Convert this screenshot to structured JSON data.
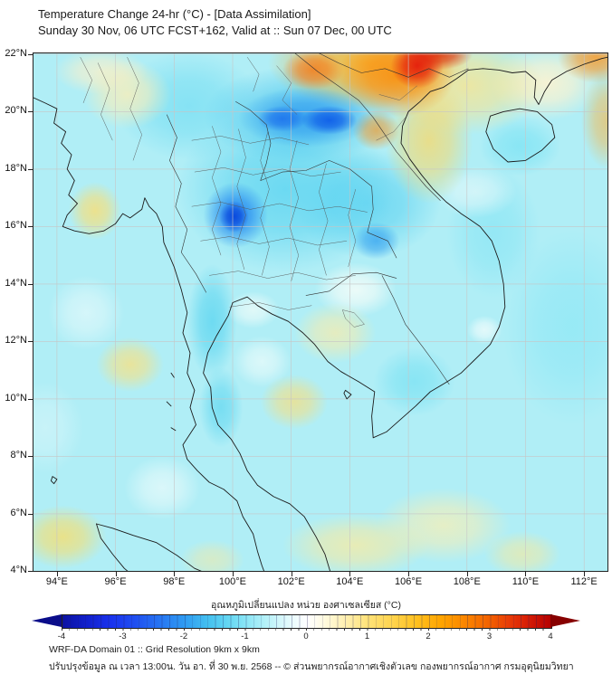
{
  "header": {
    "title": "Temperature Change 24-hr (°C) - [Data Assimilation]",
    "subtitle": "Sunday 30 Nov, 06 UTC FCST+162, Valid at :: Sun 07 Dec, 00 UTC"
  },
  "chart_data": {
    "type": "heatmap",
    "title": "Temperature Change 24-hr (°C) - [Data Assimilation]",
    "x_range_deg_east": [
      93.17,
      112.83
    ],
    "y_range_deg_north": [
      3.93,
      22.06
    ],
    "grid": true,
    "lon_ticks": [
      {
        "label": "94°E",
        "value": 94
      },
      {
        "label": "96°E",
        "value": 96
      },
      {
        "label": "98°E",
        "value": 98
      },
      {
        "label": "100°E",
        "value": 100
      },
      {
        "label": "102°E",
        "value": 102
      },
      {
        "label": "104°E",
        "value": 104
      },
      {
        "label": "106°E",
        "value": 106
      },
      {
        "label": "108°E",
        "value": 108
      },
      {
        "label": "110°E",
        "value": 110
      },
      {
        "label": "112°E",
        "value": 112
      }
    ],
    "lat_ticks": [
      {
        "label": "22°N",
        "value": 22
      },
      {
        "label": "20°N",
        "value": 20
      },
      {
        "label": "18°N",
        "value": 18
      },
      {
        "label": "16°N",
        "value": 16
      },
      {
        "label": "14°N",
        "value": 14
      },
      {
        "label": "12°N",
        "value": 12
      },
      {
        "label": "10°N",
        "value": 10
      },
      {
        "label": "8°N",
        "value": 8
      },
      {
        "label": "6°N",
        "value": 6
      },
      {
        "label": "4°N",
        "value": 4
      }
    ],
    "features": [
      {
        "name": "strong-cooling-core-north-thailand",
        "lon": 100.0,
        "lat": 16.4,
        "value_c": -3.5
      },
      {
        "name": "cooling-band-north-laos",
        "lon": 102.4,
        "lat": 19.7,
        "value_c": -3.0
      },
      {
        "name": "cooling-spot-south-laos",
        "lon": 104.9,
        "lat": 15.5,
        "value_c": -2.0
      },
      {
        "name": "general-cooling-region",
        "lon": 101.5,
        "lat": 14.0,
        "value_c": -1.0
      },
      {
        "name": "strong-warming-north-vietnam",
        "lon": 106.3,
        "lat": 21.6,
        "value_c": 3.8
      },
      {
        "name": "warming-top-right-corner",
        "lon": 112.4,
        "lat": 21.9,
        "value_c": 2.5
      },
      {
        "name": "mild-warming-myanmar-coast",
        "lon": 95.3,
        "lat": 16.5,
        "value_c": 0.8
      },
      {
        "name": "mild-warming-gulf",
        "lon": 102.1,
        "lat": 9.9,
        "value_c": 0.7
      },
      {
        "name": "mild-warming-south-band",
        "lon": 105.0,
        "lat": 5.2,
        "value_c": 0.5
      }
    ],
    "base_color": "#b0eef6",
    "field_blobs": [
      {
        "lon": 100.05,
        "lat": 16.35,
        "rx": 0.5,
        "ry": 0.55,
        "color": "#0846dc",
        "a": 0.95
      },
      {
        "lon": 100.1,
        "lat": 16.4,
        "rx": 1.1,
        "ry": 1.15,
        "color": "#1b7ef0",
        "a": 0.8
      },
      {
        "lon": 103.3,
        "lat": 19.7,
        "rx": 0.95,
        "ry": 0.5,
        "color": "#0c5ae8",
        "a": 0.9
      },
      {
        "lon": 101.7,
        "lat": 19.75,
        "rx": 0.85,
        "ry": 0.45,
        "color": "#1668ec",
        "a": 0.75
      },
      {
        "lon": 102.5,
        "lat": 19.8,
        "rx": 2.3,
        "ry": 1.05,
        "color": "#2b96f0",
        "a": 0.75
      },
      {
        "lon": 104.9,
        "lat": 15.5,
        "rx": 0.8,
        "ry": 0.65,
        "color": "#2f9df0",
        "a": 0.7
      },
      {
        "lon": 106.3,
        "lat": 21.6,
        "rx": 0.9,
        "ry": 0.8,
        "color": "#e41c0c",
        "a": 0.95
      },
      {
        "lon": 107.0,
        "lat": 22.0,
        "rx": 1.2,
        "ry": 0.55,
        "color": "#e03008",
        "a": 0.85
      },
      {
        "lon": 105.6,
        "lat": 21.25,
        "rx": 2.0,
        "ry": 1.45,
        "color": "#fb8c0a",
        "a": 0.85
      },
      {
        "lon": 102.75,
        "lat": 21.45,
        "rx": 1.05,
        "ry": 0.7,
        "color": "#f57818",
        "a": 0.8
      },
      {
        "lon": 104.9,
        "lat": 19.35,
        "rx": 0.8,
        "ry": 0.7,
        "color": "#f8941c",
        "a": 0.65
      },
      {
        "lon": 104.6,
        "lat": 21.7,
        "rx": 3.4,
        "ry": 1.6,
        "color": "#ffb01e",
        "a": 0.85
      },
      {
        "lon": 106.7,
        "lat": 19.0,
        "rx": 1.5,
        "ry": 2.2,
        "color": "#ffd75e",
        "a": 0.7
      },
      {
        "lon": 108.0,
        "lat": 20.9,
        "rx": 2.6,
        "ry": 1.7,
        "color": "#ffe488",
        "a": 0.75
      },
      {
        "lon": 112.4,
        "lat": 21.9,
        "rx": 1.3,
        "ry": 0.9,
        "color": "#fa9a2a",
        "a": 0.85
      },
      {
        "lon": 112.8,
        "lat": 19.7,
        "rx": 0.9,
        "ry": 1.7,
        "color": "#fbb23e",
        "a": 0.6
      },
      {
        "lon": 110.7,
        "lat": 21.0,
        "rx": 1.9,
        "ry": 1.3,
        "color": "#fdf3d0",
        "a": 0.9
      },
      {
        "lon": 95.3,
        "lat": 16.55,
        "rx": 0.9,
        "ry": 1.0,
        "color": "#f2e083",
        "a": 0.9
      },
      {
        "lon": 96.4,
        "lat": 20.6,
        "rx": 1.5,
        "ry": 1.2,
        "color": "#f6eebc",
        "a": 0.85
      },
      {
        "lon": 95.5,
        "lat": 21.4,
        "rx": 1.6,
        "ry": 0.8,
        "color": "#f7f0cc",
        "a": 0.8
      },
      {
        "lon": 96.5,
        "lat": 11.2,
        "rx": 1.15,
        "ry": 0.95,
        "color": "#f2e28c",
        "a": 0.85
      },
      {
        "lon": 94.2,
        "lat": 5.2,
        "rx": 1.5,
        "ry": 1.1,
        "color": "#efe07e",
        "a": 0.9
      },
      {
        "lon": 102.1,
        "lat": 9.9,
        "rx": 1.15,
        "ry": 0.95,
        "color": "#f1e08a",
        "a": 0.8
      },
      {
        "lon": 103.5,
        "lat": 12.3,
        "rx": 1.4,
        "ry": 1.05,
        "color": "#f6ecae",
        "a": 0.75
      },
      {
        "lon": 104.2,
        "lat": 4.9,
        "rx": 2.5,
        "ry": 1.1,
        "color": "#f5eba6",
        "a": 0.8
      },
      {
        "lon": 107.2,
        "lat": 5.6,
        "rx": 2.3,
        "ry": 1.3,
        "color": "#f7efb6",
        "a": 0.75
      },
      {
        "lon": 109.9,
        "lat": 4.6,
        "rx": 1.3,
        "ry": 0.8,
        "color": "#f4e9a0",
        "a": 0.65
      },
      {
        "lon": 99.3,
        "lat": 4.4,
        "rx": 1.1,
        "ry": 0.7,
        "color": "#f4e9a4",
        "a": 0.55
      },
      {
        "lon": 104.2,
        "lat": 13.8,
        "rx": 1.4,
        "ry": 0.95,
        "color": "#f2fcf8",
        "a": 0.9
      },
      {
        "lon": 100.7,
        "lat": 13.1,
        "rx": 0.9,
        "ry": 0.65,
        "color": "#ecfbf9",
        "a": 0.8
      },
      {
        "lon": 101.0,
        "lat": 11.3,
        "rx": 1.0,
        "ry": 0.9,
        "color": "#eefcfb",
        "a": 0.7
      },
      {
        "lon": 95.0,
        "lat": 13.0,
        "rx": 1.3,
        "ry": 1.3,
        "color": "#e4f9fb",
        "a": 0.7
      },
      {
        "lon": 97.6,
        "lat": 6.9,
        "rx": 1.3,
        "ry": 1.1,
        "color": "#ecfbfb",
        "a": 0.7
      },
      {
        "lon": 93.6,
        "lat": 9.0,
        "rx": 1.3,
        "ry": 1.6,
        "color": "#d8f6fa",
        "a": 0.6
      },
      {
        "lon": 108.6,
        "lat": 12.4,
        "rx": 0.6,
        "ry": 0.5,
        "color": "#effcfc",
        "a": 0.8
      },
      {
        "lon": 108.3,
        "lat": 17.2,
        "rx": 1.4,
        "ry": 0.9,
        "color": "#f0fbfb",
        "a": 0.6
      },
      {
        "lon": 102.3,
        "lat": 19.9,
        "rx": 3.3,
        "ry": 1.7,
        "color": "#47c4ee",
        "a": 0.7
      },
      {
        "lon": 101.8,
        "lat": 17.3,
        "rx": 3.7,
        "ry": 2.9,
        "color": "#55d2f0",
        "a": 0.75
      },
      {
        "lon": 104.6,
        "lat": 16.8,
        "rx": 2.5,
        "ry": 1.9,
        "color": "#4ecdf0",
        "a": 0.65
      },
      {
        "lon": 98.5,
        "lat": 20.2,
        "rx": 2.5,
        "ry": 1.9,
        "color": "#6fdcf3",
        "a": 0.65
      },
      {
        "lon": 99.3,
        "lat": 12.7,
        "rx": 0.85,
        "ry": 2.0,
        "color": "#58d4f0",
        "a": 0.75
      },
      {
        "lon": 99.6,
        "lat": 9.7,
        "rx": 0.75,
        "ry": 1.4,
        "color": "#5ad5f0",
        "a": 0.65
      },
      {
        "lon": 106.2,
        "lat": 10.6,
        "rx": 1.4,
        "ry": 1.2,
        "color": "#73e0f3",
        "a": 0.65
      },
      {
        "lon": 109.8,
        "lat": 18.8,
        "rx": 1.4,
        "ry": 1.05,
        "color": "#7ce3f4",
        "a": 0.75
      },
      {
        "lon": 111.6,
        "lat": 12.5,
        "rx": 2.4,
        "ry": 3.4,
        "color": "#8ae7f5",
        "a": 0.65
      },
      {
        "lon": 108.9,
        "lat": 15.8,
        "rx": 1.6,
        "ry": 2.3,
        "color": "#7ee3f4",
        "a": 0.55
      }
    ],
    "colorbar": {
      "label": "อุณหภูมิเปลี่ยนแปลง หน่วย องศาเซลเซียส (°C)",
      "unit": "°C",
      "range": [
        -4,
        4
      ],
      "tick_labels": [
        "-4",
        "-3",
        "-2",
        "-1",
        "0",
        "1",
        "2",
        "3",
        "4"
      ],
      "tick_values": [
        -4,
        -3,
        -2,
        -1,
        0,
        1,
        2,
        3,
        4
      ],
      "left_tip_color": "#0a0d8a",
      "right_tip_color": "#870000",
      "stops": [
        [
          -4,
          "#0c12a2"
        ],
        [
          -3.6,
          "#1220cc"
        ],
        [
          -3.2,
          "#1a33ee"
        ],
        [
          -2.8,
          "#2050f0"
        ],
        [
          -2.4,
          "#2776f2"
        ],
        [
          -2,
          "#2f9cf2"
        ],
        [
          -1.6,
          "#46c2f0"
        ],
        [
          -1.3,
          "#64d6f2"
        ],
        [
          -1,
          "#8ae6f6"
        ],
        [
          -0.7,
          "#b2f0f8"
        ],
        [
          -0.4,
          "#d8f8fb"
        ],
        [
          -0.15,
          "#f2fdfe"
        ],
        [
          0,
          "#ffffff"
        ],
        [
          0.15,
          "#fffdf0"
        ],
        [
          0.4,
          "#fff7d0"
        ],
        [
          0.7,
          "#ffeda6"
        ],
        [
          1,
          "#ffe278"
        ],
        [
          1.4,
          "#ffd44e"
        ],
        [
          1.8,
          "#ffc01e"
        ],
        [
          2.2,
          "#ffa400"
        ],
        [
          2.6,
          "#fb8500"
        ],
        [
          3,
          "#f26000"
        ],
        [
          3.3,
          "#e83c08"
        ],
        [
          3.6,
          "#d81e06"
        ],
        [
          4,
          "#b40000"
        ]
      ]
    }
  },
  "footer": {
    "line1": "WRF-DA Domain 01 :: Grid Resolution 9km x 9km",
    "line2": "ปรับปรุงข้อมูล ณ เวลา 13:00น. วัน อา. ที่ 30 พ.ย. 2568 -- © ส่วนพยากรณ์อากาศเชิงตัวเลข กองพยากรณ์อากาศ กรมอุตุนิยมวิทยา"
  }
}
